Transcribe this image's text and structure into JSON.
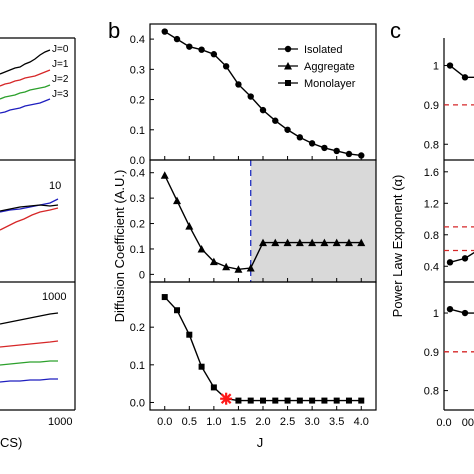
{
  "panel_letters": {
    "b": "b",
    "c": "c"
  },
  "panel_a": {
    "top_labels": [
      "J=0",
      "J=1",
      "J=2",
      "J=3"
    ],
    "top_colors": [
      "#000000",
      "#d62728",
      "#2ca02c",
      "#1f1fbf"
    ],
    "middle_label": "10",
    "bottom_label": "1000",
    "x_tick": "1000",
    "x_label_fragment": "CS)"
  },
  "panel_b": {
    "ylabel": "Diffusion Coefficient (A.U.)",
    "xlabel": "J",
    "legend": [
      "Isolated",
      "Aggregate",
      "Monolayer"
    ],
    "shade_color": "#d9d9d9",
    "dashed_line_color": "#1f2fbf",
    "marker_color": "#ff1a1a"
  },
  "panel_c": {
    "ylabel": "Power Law Exponent (α)",
    "ref_line_color": "#d62728",
    "x_ticks": [
      "0.0",
      "00"
    ]
  },
  "chart_data": [
    {
      "type": "line",
      "panel": "b-top",
      "series": [
        {
          "name": "Isolated",
          "marker": "circle",
          "x": [
            0.0,
            0.25,
            0.5,
            0.75,
            1.0,
            1.25,
            1.5,
            1.75,
            2.0,
            2.25,
            2.5,
            2.75,
            3.0,
            3.25,
            3.5,
            3.75,
            4.0
          ],
          "values": [
            0.425,
            0.4,
            0.375,
            0.365,
            0.35,
            0.31,
            0.25,
            0.21,
            0.165,
            0.13,
            0.1,
            0.075,
            0.055,
            0.04,
            0.03,
            0.02,
            0.015
          ]
        }
      ],
      "xlim": [
        -0.3,
        4.3
      ],
      "ylim": [
        0,
        0.45
      ],
      "yticks": [
        "0.0",
        "0.1",
        "0.2",
        "0.3",
        "0.4"
      ]
    },
    {
      "type": "line",
      "panel": "b-middle",
      "series": [
        {
          "name": "Aggregate",
          "marker": "triangle",
          "x": [
            0.0,
            0.25,
            0.5,
            0.75,
            1.0,
            1.25,
            1.5,
            1.75,
            2.0,
            2.25,
            2.5,
            2.75,
            3.0,
            3.25,
            3.5,
            3.75,
            4.0
          ],
          "values": [
            0.39,
            0.29,
            0.19,
            0.1,
            0.05,
            0.03,
            0.02,
            0.025,
            0.125,
            0.125,
            0.125,
            0.125,
            0.125,
            0.125,
            0.125,
            0.125,
            0.125
          ]
        }
      ],
      "xlim": [
        -0.3,
        4.3
      ],
      "ylim": [
        -0.03,
        0.45
      ],
      "yticks": [
        "0",
        "0.1",
        "0.2",
        "0.3",
        "0.4"
      ],
      "shaded_region_x": [
        1.75,
        4.3
      ],
      "vertical_line_x": 1.75
    },
    {
      "type": "line",
      "panel": "b-bottom",
      "series": [
        {
          "name": "Monolayer",
          "marker": "square",
          "x": [
            0.0,
            0.25,
            0.5,
            0.75,
            1.0,
            1.25,
            1.5,
            1.75,
            2.0,
            2.25,
            2.5,
            2.75,
            3.0,
            3.25,
            3.5,
            3.75,
            4.0
          ],
          "values": [
            0.28,
            0.245,
            0.18,
            0.095,
            0.04,
            0.01,
            0.005,
            0.005,
            0.005,
            0.005,
            0.005,
            0.005,
            0.005,
            0.005,
            0.005,
            0.005,
            0.005
          ]
        }
      ],
      "highlight_x": 1.25,
      "xlim": [
        -0.3,
        4.3
      ],
      "ylim": [
        -0.02,
        0.32
      ],
      "yticks": [
        "0.0",
        "0.1",
        "0.2"
      ],
      "xticks": [
        "0.0",
        "0.5",
        "1.0",
        "1.5",
        "2.0",
        "2.5",
        "3.0",
        "3.5",
        "4.0"
      ]
    },
    {
      "type": "line",
      "panel": "c-top",
      "x": [
        0.0,
        0.1,
        0.2
      ],
      "values": [
        1.0,
        0.97,
        0.97
      ],
      "ylim": [
        0.76,
        1.07
      ],
      "yticks": [
        "0.8",
        "0.9",
        "1"
      ],
      "ref_y": 0.9
    },
    {
      "type": "line",
      "panel": "c-middle",
      "x": [
        0.0,
        0.1,
        0.2
      ],
      "values": [
        0.45,
        0.5,
        0.62
      ],
      "ylim": [
        0.2,
        1.75
      ],
      "yticks": [
        "0.4",
        "0.8",
        "1.2",
        "1.6"
      ],
      "ref_y": [
        0.9,
        0.6
      ]
    },
    {
      "type": "line",
      "panel": "c-bottom",
      "x": [
        0.0,
        0.1,
        0.2
      ],
      "values": [
        1.01,
        1.0,
        1.0
      ],
      "ylim": [
        0.75,
        1.08
      ],
      "yticks": [
        "0.8",
        "0.9",
        "1"
      ],
      "ref_y": 0.9
    }
  ]
}
